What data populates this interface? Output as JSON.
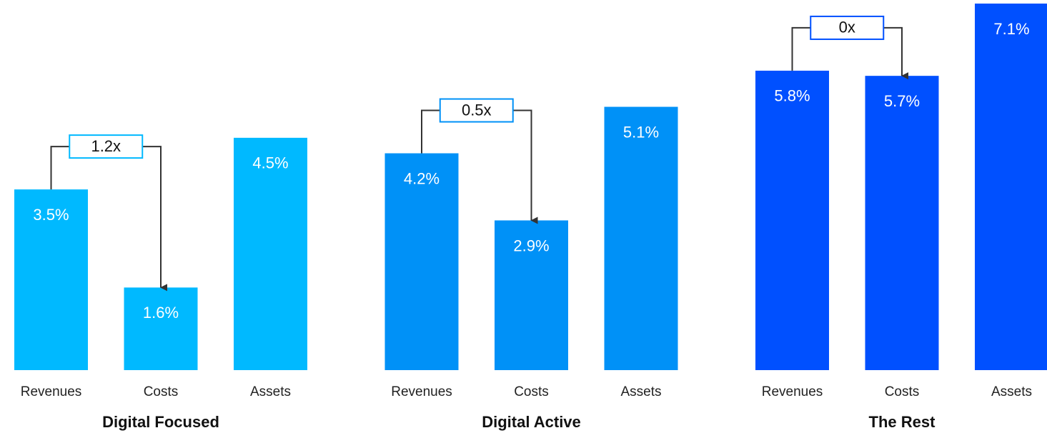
{
  "chart_data": [
    {
      "type": "bar",
      "title": "Digital Focused",
      "categories": [
        "Revenues",
        "Costs",
        "Assets"
      ],
      "values": [
        3.5,
        1.6,
        4.5
      ],
      "value_labels": [
        "3.5%",
        "1.6%",
        "4.5%"
      ],
      "annotation": "1.2x",
      "color": "#00b9ff",
      "ylim": [
        0,
        7.1
      ]
    },
    {
      "type": "bar",
      "title": "Digital Active",
      "categories": [
        "Revenues",
        "Costs",
        "Assets"
      ],
      "values": [
        4.2,
        2.9,
        5.1
      ],
      "value_labels": [
        "4.2%",
        "2.9%",
        "5.1%"
      ],
      "annotation": "0.5x",
      "color": "#0091f7",
      "ylim": [
        0,
        7.1
      ]
    },
    {
      "type": "bar",
      "title": "The Rest",
      "categories": [
        "Revenues",
        "Costs",
        "Assets"
      ],
      "values": [
        5.8,
        5.7,
        7.1
      ],
      "value_labels": [
        "5.8%",
        "5.7%",
        "7.1%"
      ],
      "annotation": "0x",
      "color": "#0050ff",
      "ylim": [
        0,
        7.1
      ]
    }
  ]
}
